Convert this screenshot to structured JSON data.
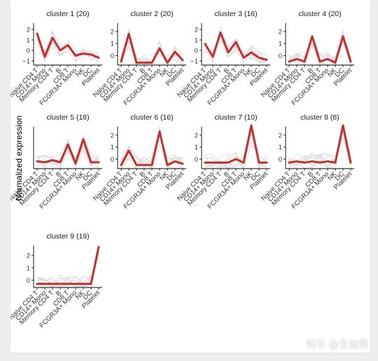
{
  "ylabel": "Normalized expression",
  "watermark": "知乎 @生信果",
  "colors": {
    "highlight": "#c03232",
    "background_lines": "#d9d9d9",
    "axis": "#000000"
  },
  "chart_data": [
    {
      "type": "line",
      "title": "cluster 1 (20)",
      "xlabel": "",
      "ylabel": "Normalized expression",
      "categories": [
        "Naive CD4 T",
        "CD14+ Mono",
        "Memory CD4 T",
        "B",
        "CD8 T",
        "FCGR3A+ Mono",
        "NK",
        "DC",
        "Platelet"
      ],
      "yticks": [
        -1,
        0,
        1,
        2
      ],
      "ylim": [
        -1.4,
        2.6
      ],
      "series": [
        {
          "values": [
            1.6,
            -0.6,
            1.2,
            0.0,
            0.5,
            -0.5,
            -0.3,
            -0.4,
            -0.7
          ]
        }
      ],
      "grid": false
    },
    {
      "type": "line",
      "title": "cluster 2 (20)",
      "xlabel": "",
      "ylabel": "Normalized expression",
      "categories": [
        "Naive CD4 T",
        "CD14+ Mono",
        "Memory CD4 T",
        "B",
        "CD8 T",
        "FCGR3A+ Mono",
        "NK",
        "DC",
        "Platelet"
      ],
      "yticks": [
        0,
        1,
        2
      ],
      "ylim": [
        -0.8,
        2.7
      ],
      "series": [
        {
          "values": [
            -0.5,
            1.8,
            -0.6,
            -0.6,
            -0.6,
            0.6,
            -0.6,
            0.3,
            -0.4
          ]
        }
      ],
      "grid": false
    },
    {
      "type": "line",
      "title": "cluster 3 (16)",
      "xlabel": "",
      "ylabel": "Normalized expression",
      "categories": [
        "Naive CD4 T",
        "CD14+ Mono",
        "Memory CD4 T",
        "B",
        "CD8 T",
        "FCGR3A+ Mono",
        "NK",
        "DC",
        "Platelet"
      ],
      "yticks": [
        -1,
        0,
        1,
        2
      ],
      "ylim": [
        -1.4,
        2.6
      ],
      "series": [
        {
          "values": [
            0.6,
            -0.6,
            1.7,
            -0.2,
            0.8,
            -0.7,
            -0.2,
            -0.7,
            -0.9
          ]
        }
      ],
      "grid": false
    },
    {
      "type": "line",
      "title": "cluster 4 (20)",
      "xlabel": "",
      "ylabel": "Normalized expression",
      "categories": [
        "Naive CD4 T",
        "CD14+ Mono",
        "Memory CD4 T",
        "B",
        "CD8 T",
        "FCGR3A+ Mono",
        "NK",
        "DC",
        "Platelet"
      ],
      "yticks": [
        0,
        1,
        2
      ],
      "ylim": [
        -0.8,
        2.7
      ],
      "series": [
        {
          "values": [
            -0.5,
            -0.3,
            -0.5,
            1.6,
            -0.5,
            -0.3,
            -0.6,
            1.6,
            -0.5
          ]
        }
      ],
      "grid": false
    },
    {
      "type": "line",
      "title": "cluster 5 (18)",
      "xlabel": "",
      "ylabel": "Normalized expression",
      "categories": [
        "Naive CD4 T",
        "CD14+ Mono",
        "Memory CD4 T",
        "B",
        "CD8 T",
        "FCGR3A+ Mono",
        "NK",
        "DC",
        "Platelet"
      ],
      "yticks": [],
      "ylim": [
        -1.0,
        3.0
      ],
      "series": [
        {
          "values": [
            -0.3,
            -0.4,
            -0.2,
            -0.4,
            1.3,
            -0.5,
            1.8,
            -0.4,
            -0.4
          ]
        }
      ],
      "grid": false
    },
    {
      "type": "line",
      "title": "cluster 6 (16)",
      "xlabel": "",
      "ylabel": "Normalized expression",
      "categories": [
        "Naive CD4 T",
        "CD14+ Mono",
        "Memory CD4 T",
        "B",
        "CD8 T",
        "FCGR3A+ Mono",
        "NK",
        "DC",
        "Platelet"
      ],
      "yticks": [
        0,
        1,
        2
      ],
      "ylim": [
        -0.8,
        2.7
      ],
      "series": [
        {
          "values": [
            -0.5,
            0.7,
            -0.5,
            -0.5,
            -0.5,
            2.3,
            -0.5,
            -0.2,
            -0.4
          ]
        }
      ],
      "grid": false
    },
    {
      "type": "line",
      "title": "cluster 7 (10)",
      "xlabel": "",
      "ylabel": "Normalized expression",
      "categories": [
        "Naive CD4 T",
        "CD14+ Mono",
        "Memory CD4 T",
        "B",
        "CD8 T",
        "FCGR3A+ Mono",
        "NK",
        "DC",
        "Platelet"
      ],
      "yticks": [
        0,
        1,
        2
      ],
      "ylim": [
        -0.8,
        2.7
      ],
      "series": [
        {
          "values": [
            -0.3,
            -0.3,
            -0.3,
            -0.3,
            0.0,
            -0.3,
            2.8,
            -0.3,
            -0.3
          ]
        }
      ],
      "grid": false
    },
    {
      "type": "line",
      "title": "cluster 8 (8)",
      "xlabel": "",
      "ylabel": "Normalized expression",
      "categories": [
        "Naive CD4 T",
        "CD14+ Mono",
        "Memory CD4 T",
        "B",
        "CD8 T",
        "FCGR3A+ Mono",
        "NK",
        "DC",
        "Platelet"
      ],
      "yticks": [
        0,
        1,
        2
      ],
      "ylim": [
        -0.8,
        2.7
      ],
      "series": [
        {
          "values": [
            -0.3,
            -0.2,
            -0.3,
            -0.2,
            -0.3,
            -0.2,
            -0.3,
            2.8,
            -0.3
          ]
        }
      ],
      "grid": false
    },
    {
      "type": "line",
      "title": "cluster 9 (19)",
      "xlabel": "",
      "ylabel": "Normalized expression",
      "categories": [
        "Naive CD4 T",
        "CD14+ Mono",
        "Memory CD4 T",
        "B",
        "CD8 T",
        "FCGR3A+ Mono",
        "NK",
        "DC",
        "Platelet"
      ],
      "yticks": [
        0,
        1,
        2
      ],
      "ylim": [
        -0.6,
        2.8
      ],
      "series": [
        {
          "values": [
            -0.3,
            -0.3,
            -0.3,
            -0.3,
            -0.3,
            -0.3,
            -0.3,
            -0.3,
            2.7
          ]
        }
      ],
      "grid": false
    }
  ]
}
